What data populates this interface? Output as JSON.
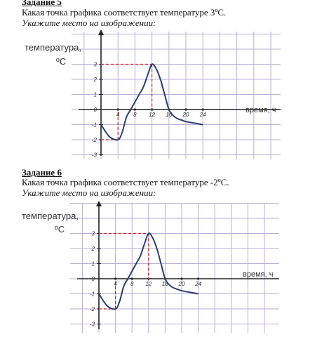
{
  "tasks": [
    {
      "title": "Задание 5",
      "question": "Какая точка графика соответствует температуре 3ºС.",
      "instruction": "Укажите место на изображении:"
    },
    {
      "title": "Задание 6",
      "question": "Какая точка графика соответствует температуре -2ºС.",
      "instruction": "Укажите место на изображении:"
    }
  ],
  "chart_data": [
    {
      "type": "line",
      "ylabel_line1": "температура,",
      "ylabel_line2": "ºС",
      "xlabel": "время, ч",
      "xlim": [
        0,
        24
      ],
      "ylim": [
        -3,
        3
      ],
      "x_ticks": [
        4,
        8,
        12,
        16,
        20,
        24
      ],
      "y_ticks": [
        3,
        2,
        1,
        0,
        -1,
        -2,
        -3
      ],
      "grid": true,
      "x": [
        0,
        2,
        4,
        5,
        6,
        7,
        8,
        9,
        10,
        11,
        12,
        13,
        14,
        15,
        16,
        17,
        18,
        19,
        20,
        22,
        24
      ],
      "values": [
        -1,
        -1.8,
        -2,
        -1.5,
        -0.5,
        0,
        0.5,
        1,
        1.5,
        2.3,
        3,
        2.7,
        2,
        1,
        0,
        -0.4,
        -0.6,
        -0.7,
        -0.8,
        -0.9,
        -1
      ],
      "line_color": "#2c3e6f",
      "grid_color": "#b8aed6",
      "axis_color": "#222222",
      "marker_color": "#d0221c",
      "highlight": {
        "x": 12,
        "y": 3
      }
    },
    {
      "type": "line",
      "ylabel_line1": "температура,",
      "ylabel_line2": "ºС",
      "xlabel": "время, ч",
      "xlim": [
        0,
        24
      ],
      "ylim": [
        -3,
        3
      ],
      "x_ticks": [
        4,
        8,
        12,
        16,
        20,
        24
      ],
      "y_ticks": [
        3,
        2,
        1,
        0,
        -1,
        -2,
        -3
      ],
      "grid": true,
      "x": [
        0,
        2,
        4,
        5,
        6,
        7,
        8,
        9,
        10,
        11,
        12,
        13,
        14,
        15,
        16,
        17,
        18,
        19,
        20,
        22,
        24
      ],
      "values": [
        -1,
        -1.8,
        -2,
        -1.5,
        -0.5,
        0,
        0.5,
        1,
        1.5,
        2.3,
        3,
        2.7,
        2,
        1,
        0,
        -0.4,
        -0.6,
        -0.7,
        -0.8,
        -0.9,
        -1
      ],
      "line_color": "#2c3e6f",
      "grid_color": "#b8aed6",
      "axis_color": "#222222",
      "marker_color": "#d0221c",
      "highlight": {
        "x": 12,
        "y": 3
      }
    }
  ]
}
